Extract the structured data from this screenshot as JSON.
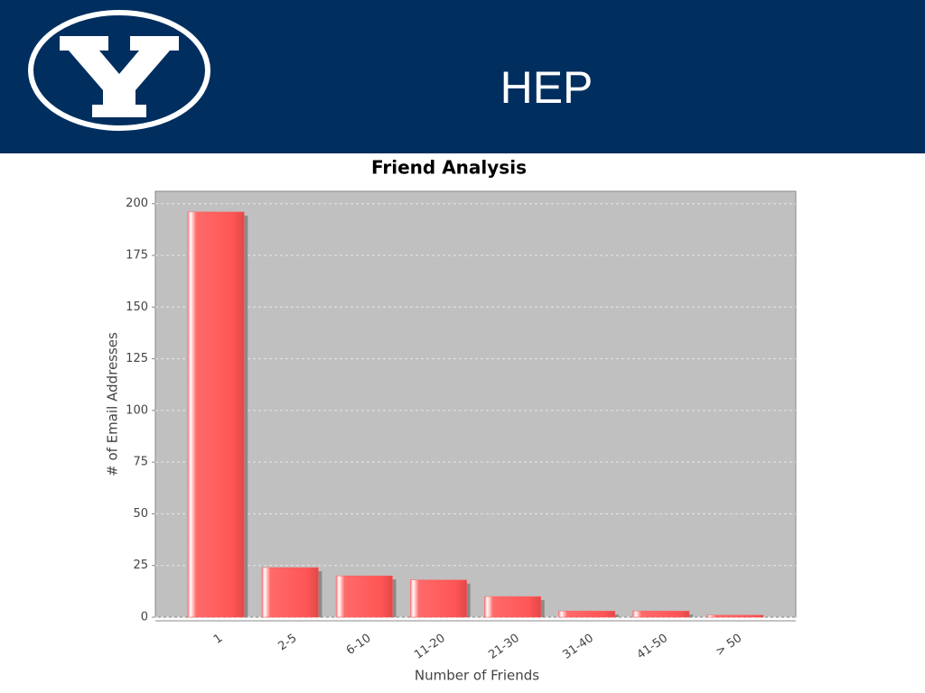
{
  "header": {
    "title": "HEP"
  },
  "chart_data": {
    "type": "bar",
    "title": "Friend Analysis",
    "x_label": "Number of Friends",
    "y_label": "# of Email Addresses",
    "categories": [
      "1",
      "2-5",
      "6-10",
      "11-20",
      "21-30",
      "31-40",
      "41-50",
      "> 50"
    ],
    "values": [
      196,
      24,
      20,
      18,
      10,
      3,
      3,
      1
    ],
    "color": "#ff5f5f",
    "ylim": [
      0,
      206
    ],
    "yticks": [
      0,
      25,
      50,
      75,
      100,
      125,
      150,
      175,
      200
    ],
    "grid": true
  }
}
